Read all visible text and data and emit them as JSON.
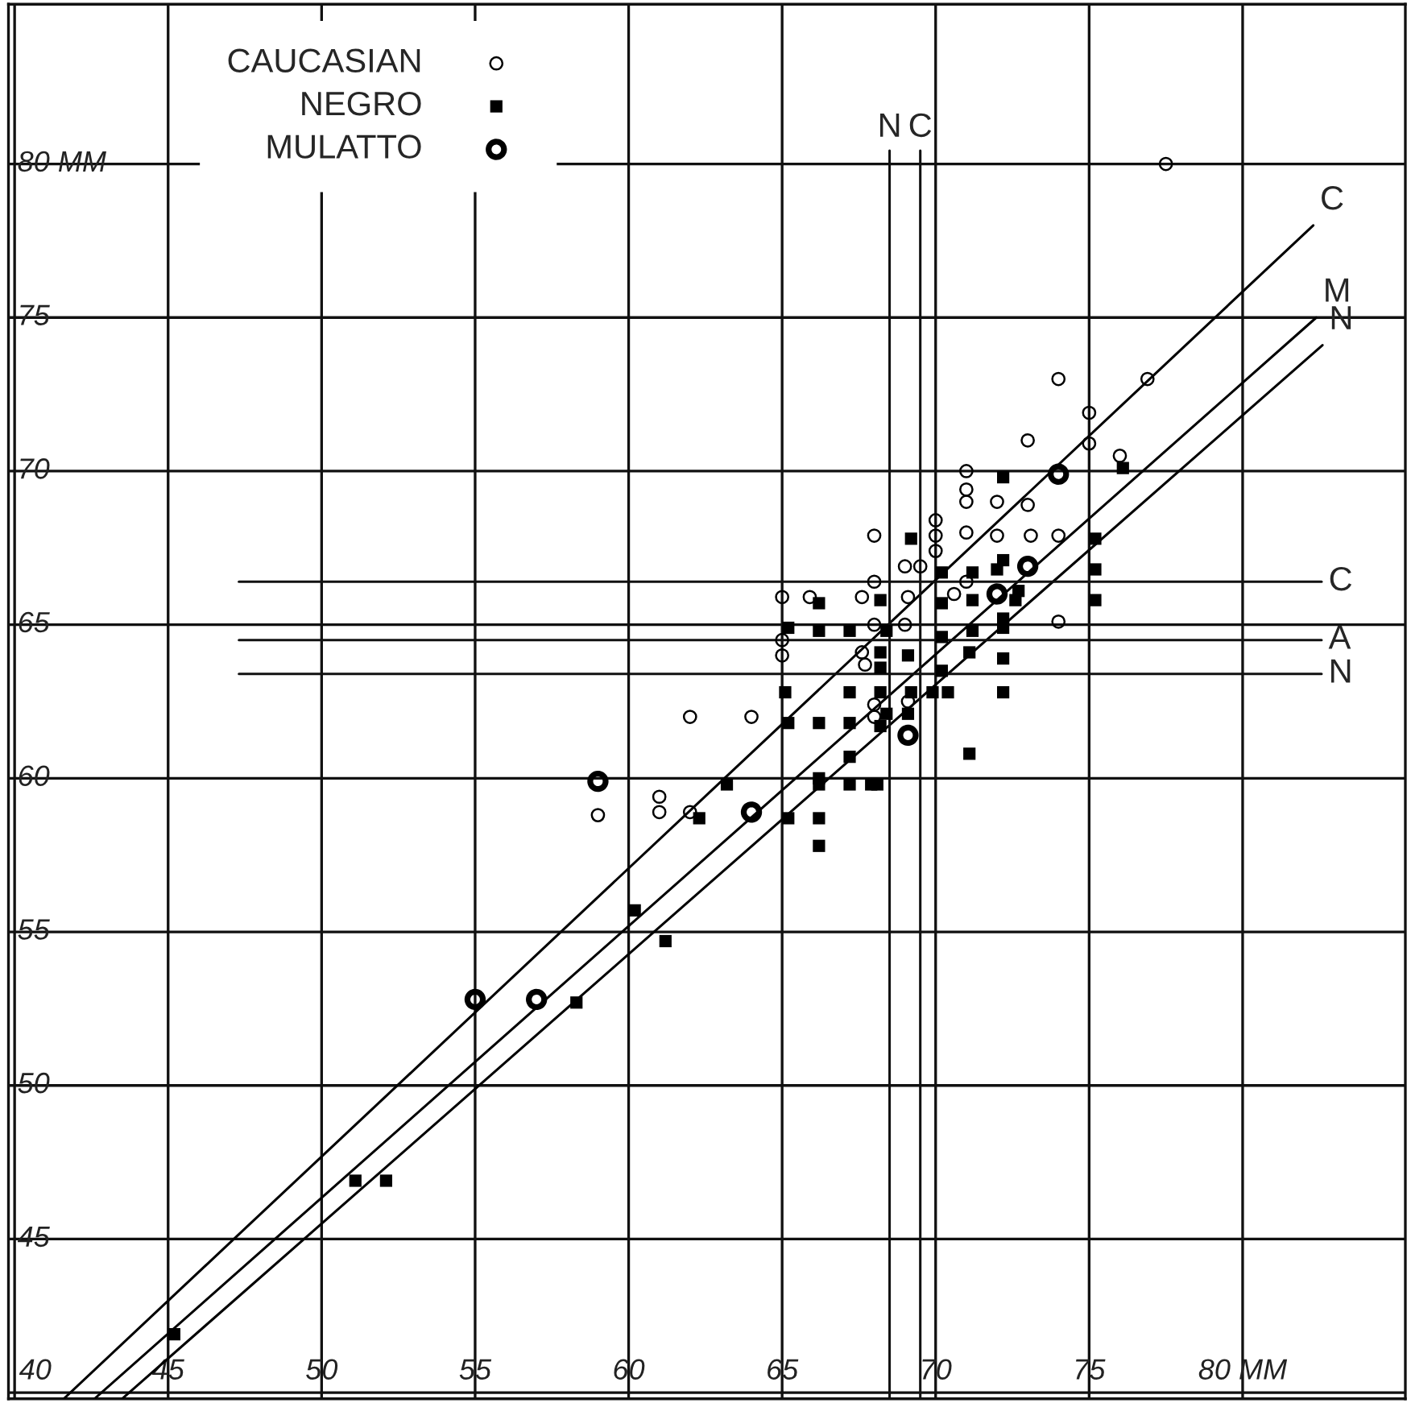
{
  "chart_data": {
    "type": "scatter",
    "xlim": [
      39.8,
      85.3
    ],
    "ylim": [
      39.8,
      85.2
    ],
    "xticks": [
      40,
      45,
      50,
      55,
      60,
      65,
      70,
      75,
      {
        "value": 80,
        "label": "80 MM"
      }
    ],
    "yticks": [
      {
        "value": 40,
        "label": null
      },
      45,
      50,
      55,
      60,
      65,
      70,
      75,
      {
        "value": 80,
        "label": "80 MM"
      }
    ],
    "grid": true,
    "legend": "top left",
    "series": [
      {
        "name": "CAUCASIAN",
        "color": "#000000",
        "x": [
          68.0,
          69.0,
          69.5,
          70.0,
          70.0,
          70.0,
          68.0,
          65.0,
          65.9,
          67.6,
          69.1,
          68.0,
          69.0,
          65.0,
          74.0,
          76.9,
          75.0,
          73.0,
          75.0,
          76.0,
          71.0,
          71.0,
          71.0,
          72.0,
          73.0,
          71.0,
          72.0,
          73.1,
          74.0,
          71.0,
          70.6,
          74.0,
          69.1,
          65.0,
          67.6,
          67.7,
          68.0,
          68.0,
          62.0,
          64.0,
          61.0,
          61.0,
          62.0,
          59.0,
          77.5
        ],
        "values": [
          67.9,
          66.9,
          66.9,
          67.4,
          67.9,
          68.4,
          66.4,
          65.9,
          65.9,
          65.9,
          65.9,
          65.0,
          65.0,
          64.5,
          73.0,
          73.0,
          71.9,
          71.0,
          70.9,
          70.5,
          70.0,
          69.4,
          69.0,
          69.0,
          68.9,
          68.0,
          67.9,
          67.9,
          67.9,
          66.4,
          66.0,
          65.1,
          62.5,
          64.0,
          64.1,
          63.7,
          62.4,
          62.0,
          62.0,
          62.0,
          59.4,
          58.9,
          58.9,
          58.8,
          80.0
        ]
      },
      {
        "name": "NEGRO",
        "color": "#000000",
        "x": [
          69.2,
          66.2,
          68.2,
          65.2,
          66.2,
          67.2,
          68.4,
          76.1,
          72.2,
          75.2,
          70.2,
          71.2,
          72.2,
          72.0,
          75.2,
          70.2,
          71.2,
          72.6,
          72.7,
          75.2,
          72.2,
          72.2,
          71.2,
          70.2,
          69.1,
          71.1,
          72.2,
          70.2,
          69.2,
          69.9,
          70.4,
          72.2,
          69.1,
          71.1,
          68.2,
          68.2,
          65.1,
          67.2,
          68.2,
          68.4,
          68.2,
          65.2,
          66.2,
          67.2,
          67.2,
          66.2,
          66.2,
          67.2,
          67.9,
          68.1,
          63.2,
          62.3,
          65.2,
          66.2,
          66.2,
          60.2,
          61.2,
          58.3,
          51.1,
          52.1,
          45.2
        ],
        "values": [
          67.8,
          65.7,
          65.8,
          64.9,
          64.8,
          64.8,
          64.8,
          70.1,
          69.8,
          67.8,
          66.7,
          66.7,
          67.1,
          66.8,
          66.8,
          65.7,
          65.8,
          65.8,
          66.1,
          65.8,
          65.2,
          64.9,
          64.8,
          64.6,
          64.0,
          64.1,
          63.9,
          63.5,
          62.8,
          62.8,
          62.8,
          62.8,
          62.1,
          60.8,
          64.1,
          63.6,
          62.8,
          62.8,
          62.8,
          62.1,
          61.7,
          61.8,
          61.8,
          61.8,
          60.7,
          60.0,
          59.8,
          59.8,
          59.8,
          59.8,
          59.8,
          58.7,
          58.7,
          58.7,
          57.8,
          55.7,
          54.7,
          52.7,
          46.9,
          46.9,
          41.9
        ]
      },
      {
        "name": "MULATTO",
        "color": "#000000",
        "x": [
          74.0,
          73.0,
          72.0,
          69.1,
          64.0,
          59.0,
          57.0,
          55.0
        ],
        "values": [
          69.9,
          66.9,
          66.0,
          61.4,
          58.9,
          59.9,
          52.8,
          52.8
        ]
      },
      {
        "name": "C",
        "type": "line",
        "color": "#000000",
        "x": [
          41.6,
          82.3
        ],
        "values": [
          39.8,
          78.0
        ]
      },
      {
        "name": "M",
        "type": "line",
        "color": "#000000",
        "x": [
          42.6,
          82.4
        ],
        "values": [
          39.8,
          75.0
        ]
      },
      {
        "name": "N",
        "type": "line",
        "color": "#000000",
        "x": [
          43.5,
          82.6
        ],
        "values": [
          39.8,
          74.1
        ]
      }
    ],
    "ref_lines": [
      {
        "axis": "y",
        "value": 66.4,
        "label": "C"
      },
      {
        "axis": "y",
        "value": 64.5,
        "label": "A"
      },
      {
        "axis": "y",
        "value": 63.4,
        "label": "N"
      },
      {
        "axis": "x",
        "value": 68.5,
        "label": "N"
      },
      {
        "axis": "x",
        "value": 69.5,
        "label": "C"
      }
    ]
  }
}
